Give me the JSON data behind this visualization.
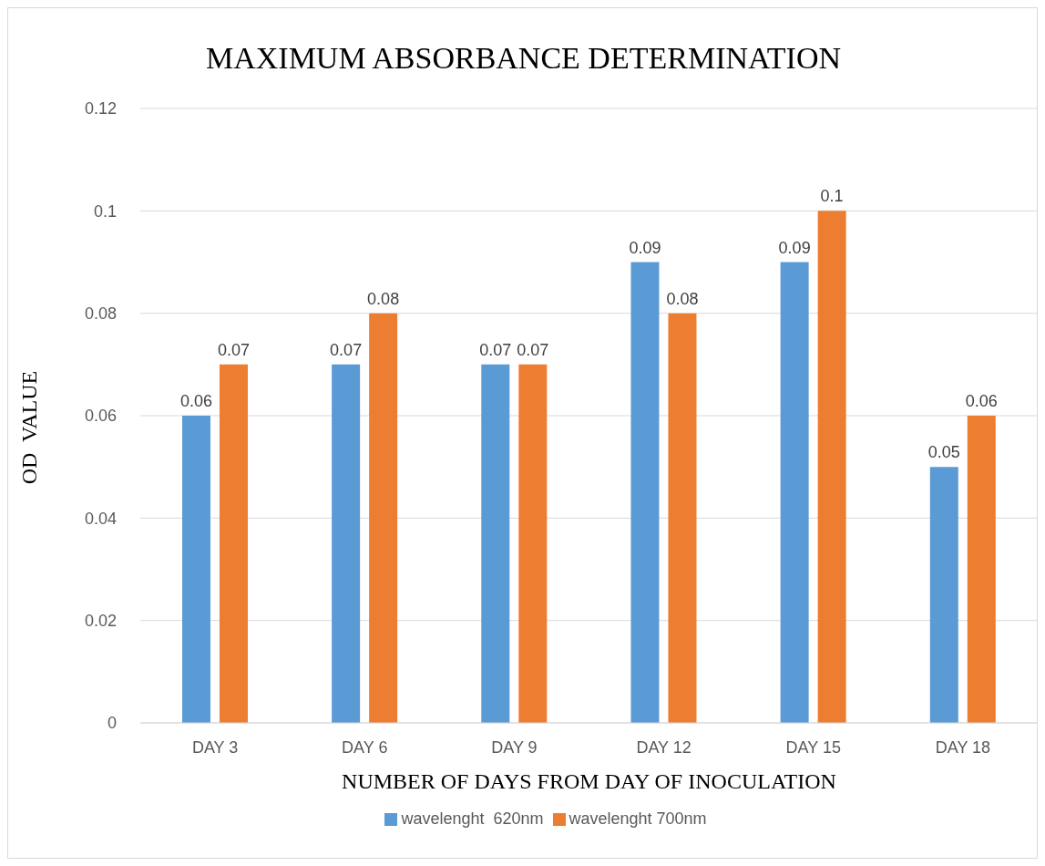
{
  "chart_data": {
    "type": "bar",
    "title": "MAXIMUM ABSORBANCE DETERMINATION",
    "xlabel": "NUMBER OF DAYS FROM DAY OF INOCULATION",
    "ylabel": "OD  VALUE",
    "categories": [
      "DAY  3",
      "DAY 6",
      "DAY 9",
      "DAY 12",
      "DAY 15",
      "DAY 18"
    ],
    "series": [
      {
        "name": "wavelenght  620nm",
        "color": "#5b9bd5",
        "values": [
          0.06,
          0.07,
          0.07,
          0.09,
          0.09,
          0.05
        ]
      },
      {
        "name": "wavelenght 700nm",
        "color": "#ed7d31",
        "values": [
          0.07,
          0.08,
          0.07,
          0.08,
          0.1,
          0.06
        ]
      }
    ],
    "ylim": [
      0,
      0.12
    ],
    "yticks": [
      0,
      0.02,
      0.04,
      0.06,
      0.08,
      0.1,
      0.12
    ],
    "grid": "y",
    "legend": "bottom",
    "data_labels": true
  }
}
